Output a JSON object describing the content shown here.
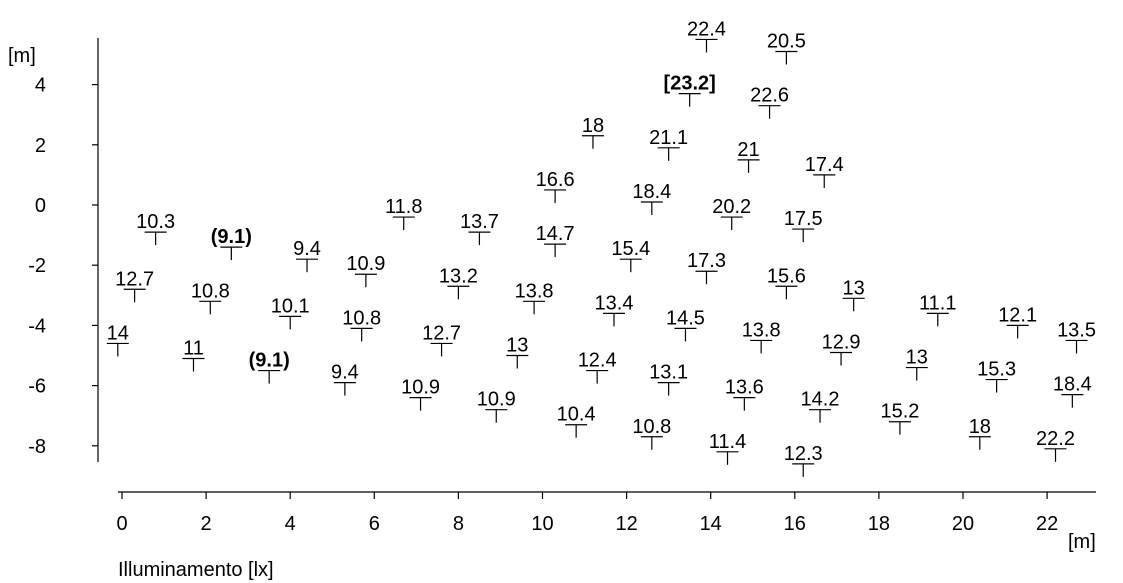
{
  "chart_data": {
    "type": "scatter",
    "title": "",
    "xlabel": "[m]",
    "ylabel": "[m]",
    "caption": "Illuminamento [lx]",
    "xlim": [
      -0.5,
      23.2
    ],
    "ylim": [
      -8.7,
      5.5
    ],
    "x_ticks": [
      0,
      2,
      4,
      6,
      8,
      10,
      12,
      14,
      16,
      18,
      20,
      22
    ],
    "y_ticks": [
      4,
      2,
      0,
      -2,
      -4,
      -6,
      -8
    ],
    "grid": false,
    "points": [
      {
        "x": 0.8,
        "y": -0.9,
        "label": "10.3"
      },
      {
        "x": 0.3,
        "y": -2.8,
        "label": "12.7"
      },
      {
        "x": -0.1,
        "y": -4.6,
        "label": "14"
      },
      {
        "x": 2.6,
        "y": -1.4,
        "label": "(9.1)",
        "emphasis": "min"
      },
      {
        "x": 2.1,
        "y": -3.2,
        "label": "10.8"
      },
      {
        "x": 1.7,
        "y": -5.1,
        "label": "11"
      },
      {
        "x": 4.4,
        "y": -1.8,
        "label": "9.4"
      },
      {
        "x": 4.0,
        "y": -3.7,
        "label": "10.1"
      },
      {
        "x": 3.5,
        "y": -5.5,
        "label": "(9.1)",
        "emphasis": "min"
      },
      {
        "x": 6.7,
        "y": -0.4,
        "label": "11.8"
      },
      {
        "x": 5.8,
        "y": -2.3,
        "label": "10.9"
      },
      {
        "x": 5.7,
        "y": -4.1,
        "label": "10.8"
      },
      {
        "x": 5.3,
        "y": -5.9,
        "label": "9.4"
      },
      {
        "x": 8.5,
        "y": -0.9,
        "label": "13.7"
      },
      {
        "x": 8.0,
        "y": -2.7,
        "label": "13.2"
      },
      {
        "x": 7.6,
        "y": -4.6,
        "label": "12.7"
      },
      {
        "x": 7.1,
        "y": -6.4,
        "label": "10.9"
      },
      {
        "x": 10.3,
        "y": 0.5,
        "label": "16.6"
      },
      {
        "x": 10.3,
        "y": -1.3,
        "label": "14.7"
      },
      {
        "x": 9.8,
        "y": -3.2,
        "label": "13.8"
      },
      {
        "x": 9.4,
        "y": -5.0,
        "label": "13"
      },
      {
        "x": 8.9,
        "y": -6.8,
        "label": "10.9"
      },
      {
        "x": 11.2,
        "y": 2.3,
        "label": "18"
      },
      {
        "x": 12.1,
        "y": -1.8,
        "label": "15.4"
      },
      {
        "x": 11.7,
        "y": -3.6,
        "label": "13.4"
      },
      {
        "x": 11.3,
        "y": -5.5,
        "label": "12.4"
      },
      {
        "x": 10.8,
        "y": -7.3,
        "label": "10.4"
      },
      {
        "x": 13.5,
        "y": 3.7,
        "label": "[23.2]",
        "emphasis": "max"
      },
      {
        "x": 13.0,
        "y": 1.9,
        "label": "21.1"
      },
      {
        "x": 12.6,
        "y": 0.1,
        "label": "18.4"
      },
      {
        "x": 13.9,
        "y": -2.2,
        "label": "17.3"
      },
      {
        "x": 13.4,
        "y": -4.1,
        "label": "14.5"
      },
      {
        "x": 13.0,
        "y": -5.9,
        "label": "13.1"
      },
      {
        "x": 12.6,
        "y": -7.7,
        "label": "10.8"
      },
      {
        "x": 13.9,
        "y": 5.5,
        "label": "22.4"
      },
      {
        "x": 15.8,
        "y": 5.1,
        "label": "20.5"
      },
      {
        "x": 15.4,
        "y": 3.3,
        "label": "22.6"
      },
      {
        "x": 14.9,
        "y": 1.5,
        "label": "21"
      },
      {
        "x": 14.5,
        "y": -0.4,
        "label": "20.2"
      },
      {
        "x": 15.2,
        "y": -4.5,
        "label": "13.8"
      },
      {
        "x": 14.8,
        "y": -6.4,
        "label": "13.6"
      },
      {
        "x": 14.4,
        "y": -8.2,
        "label": "11.4"
      },
      {
        "x": 16.7,
        "y": 1.0,
        "label": "17.4"
      },
      {
        "x": 16.2,
        "y": -0.8,
        "label": "17.5"
      },
      {
        "x": 15.8,
        "y": -2.7,
        "label": "15.6"
      },
      {
        "x": 17.1,
        "y": -4.9,
        "label": "12.9"
      },
      {
        "x": 16.6,
        "y": -6.8,
        "label": "14.2"
      },
      {
        "x": 16.2,
        "y": -8.6,
        "label": "12.3"
      },
      {
        "x": 17.4,
        "y": -3.1,
        "label": "13"
      },
      {
        "x": 19.4,
        "y": -3.6,
        "label": "11.1"
      },
      {
        "x": 18.9,
        "y": -5.4,
        "label": "13"
      },
      {
        "x": 18.5,
        "y": -7.2,
        "label": "15.2"
      },
      {
        "x": 21.3,
        "y": -4.0,
        "label": "12.1"
      },
      {
        "x": 20.8,
        "y": -5.8,
        "label": "15.3"
      },
      {
        "x": 20.4,
        "y": -7.7,
        "label": "18"
      },
      {
        "x": 22.7,
        "y": -4.5,
        "label": "13.5"
      },
      {
        "x": 22.6,
        "y": -6.3,
        "label": "18.4"
      },
      {
        "x": 22.2,
        "y": -8.1,
        "label": "22.2"
      }
    ]
  }
}
